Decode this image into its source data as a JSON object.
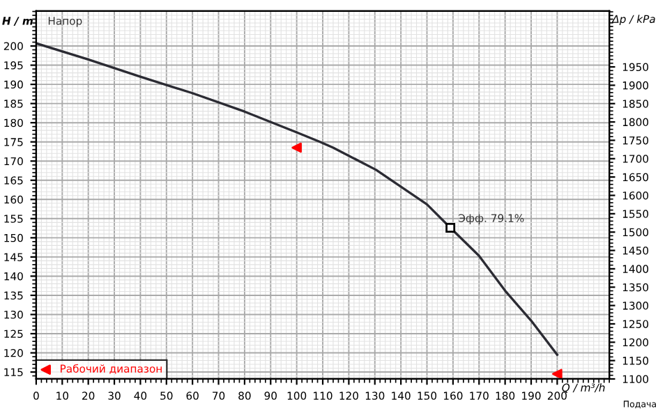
{
  "chart_data": {
    "type": "line",
    "xlabel": "Q / m³/h",
    "ylabel": "H / m",
    "y2label": "Δp / kPa",
    "x": [
      0,
      20,
      40,
      60,
      80,
      100,
      109,
      114,
      130.5,
      150,
      159,
      170,
      180,
      190,
      200
    ],
    "series": [
      {
        "color": "#2b2b33",
        "values": [
          200.7,
          196.5,
          192,
          187.7,
          182.9,
          177.5,
          175,
          173.5,
          167.7,
          158.7,
          152.6,
          145.3,
          136.2,
          128.4,
          119.5
        ]
      },
      {
        "name": "Рабочий диапазон",
        "type": "scatter",
        "marker": "triangle",
        "color": "#ff0000",
        "x": [
          100,
          200
        ],
        "values": [
          173.5,
          114.5
        ]
      }
    ],
    "xlim": [
      0,
      220
    ],
    "xticks": [
      0,
      10,
      20,
      30,
      40,
      50,
      60,
      70,
      80,
      90,
      100,
      110,
      120,
      130,
      140,
      150,
      160,
      170,
      180,
      190,
      200
    ],
    "ylim": [
      113.2,
      209.1
    ],
    "yticks": [
      115,
      120,
      125,
      130,
      135,
      140,
      145,
      150,
      155,
      160,
      165,
      170,
      175,
      180,
      185,
      190,
      195,
      200
    ],
    "y2lim": [
      1100,
      2102
    ],
    "y2ticks": [
      1100,
      1150,
      1200,
      1250,
      1300,
      1350,
      1400,
      1450,
      1500,
      1550,
      1600,
      1650,
      1700,
      1750,
      1800,
      1850,
      1900,
      1950
    ],
    "annotations": [
      {
        "text": "Эфф. 79.1%",
        "x": 159,
        "y": 152.6
      },
      "Напор",
      "Подача"
    ],
    "grid": true,
    "legend": "bottom left"
  }
}
